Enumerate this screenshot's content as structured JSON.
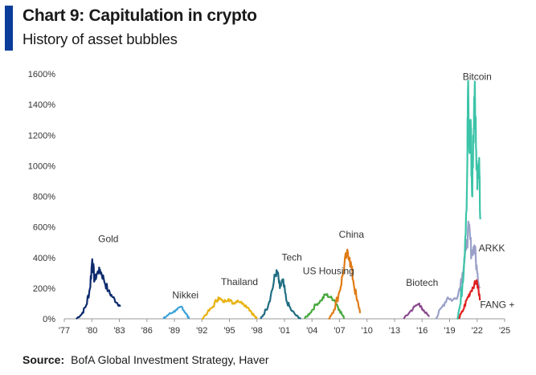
{
  "header": {
    "title": "Chart 9: Capitulation in crypto",
    "subtitle": "History of asset bubbles",
    "accent_color": "#0a3d99"
  },
  "footer": {
    "source_label": "Source:",
    "source_text": "BofA Global Investment Strategy, Haver"
  },
  "chart_data": {
    "type": "line",
    "title": "Chart 9: Capitulation in crypto",
    "subtitle": "History of asset bubbles",
    "xlabel": "",
    "ylabel": "",
    "xlim": [
      1977,
      2025
    ],
    "ylim": [
      0,
      1600
    ],
    "y_ticks": [
      0,
      200,
      400,
      600,
      800,
      1000,
      1200,
      1400,
      1600
    ],
    "y_tick_labels": [
      "0%",
      "200%",
      "400%",
      "600%",
      "800%",
      "1000%",
      "1200%",
      "1400%",
      "1600%"
    ],
    "x_ticks": [
      1977,
      1980,
      1983,
      1986,
      1989,
      1992,
      1995,
      1998,
      2001,
      2004,
      2007,
      2010,
      2013,
      2016,
      2019,
      2022,
      2025
    ],
    "x_tick_labels": [
      "'77",
      "'80",
      "'83",
      "'86",
      "'89",
      "'92",
      "'95",
      "'98",
      "'01",
      "'04",
      "'07",
      "'10",
      "'13",
      "'16",
      "'19",
      "'22",
      "'25"
    ],
    "grid": false,
    "legend": "none (series labelled directly)",
    "series": [
      {
        "name": "Gold",
        "color": "#0d2b6e",
        "x": [
          1978.3,
          1978.9,
          1979.4,
          1979.8,
          1980.05,
          1980.3,
          1980.6,
          1980.9,
          1981.3,
          1981.8,
          1982.3,
          1982.8,
          1983.1
        ],
        "y": [
          0,
          30,
          90,
          200,
          390,
          250,
          300,
          320,
          260,
          180,
          140,
          100,
          80
        ]
      },
      {
        "name": "Nikkei",
        "color": "#3ba3d9",
        "x": [
          1987.8,
          1988.4,
          1988.9,
          1989.3,
          1989.8,
          1990.2,
          1990.6
        ],
        "y": [
          0,
          30,
          45,
          60,
          80,
          40,
          0
        ]
      },
      {
        "name": "Thailand",
        "color": "#e8b20e",
        "x": [
          1992.0,
          1992.6,
          1993.2,
          1993.8,
          1994.3,
          1994.9,
          1995.4,
          1995.9,
          1996.5,
          1997.1,
          1997.7,
          1998.0
        ],
        "y": [
          0,
          40,
          80,
          140,
          110,
          130,
          100,
          120,
          100,
          70,
          20,
          0
        ]
      },
      {
        "name": "Tech",
        "color": "#1f6d82",
        "x": [
          1998.4,
          1999.0,
          1999.5,
          2000.0,
          2000.2,
          2000.5,
          2000.8,
          2001.2,
          2001.7,
          2002.3,
          2002.8
        ],
        "y": [
          0,
          60,
          150,
          280,
          310,
          200,
          250,
          120,
          60,
          20,
          0
        ]
      },
      {
        "name": "US Housing",
        "color": "#47a83e",
        "x": [
          2003.2,
          2003.8,
          2004.4,
          2005.0,
          2005.5,
          2006.0,
          2006.5,
          2007.0,
          2007.5
        ],
        "y": [
          0,
          40,
          90,
          120,
          160,
          140,
          120,
          60,
          0
        ]
      },
      {
        "name": "China",
        "color": "#e07b16",
        "x": [
          2005.8,
          2006.4,
          2007.0,
          2007.4,
          2007.8,
          2008.1,
          2008.5,
          2008.9,
          2009.3
        ],
        "y": [
          0,
          60,
          180,
          300,
          430,
          400,
          250,
          120,
          40
        ]
      },
      {
        "name": "Biotech",
        "color": "#8a4a8e",
        "x": [
          2014.0,
          2014.6,
          2015.2,
          2015.7,
          2016.0,
          2016.4,
          2016.8
        ],
        "y": [
          0,
          40,
          80,
          100,
          60,
          40,
          20
        ]
      },
      {
        "name": "ARKK",
        "color": "#9aa0c8",
        "x": [
          2017.5,
          2018.2,
          2018.8,
          2019.3,
          2019.9,
          2020.4,
          2020.8,
          2021.1,
          2021.4,
          2021.7,
          2022.0,
          2022.3
        ],
        "y": [
          0,
          80,
          140,
          120,
          150,
          300,
          450,
          600,
          420,
          480,
          300,
          200
        ]
      },
      {
        "name": "Bitcoin",
        "color": "#3cc4a8",
        "x": [
          2019.8,
          2020.2,
          2020.6,
          2020.9,
          2021.0,
          2021.15,
          2021.3,
          2021.45,
          2021.6,
          2021.75,
          2021.9,
          2022.05,
          2022.2,
          2022.35
        ],
        "y": [
          0,
          100,
          400,
          900,
          1500,
          1100,
          1300,
          800,
          1200,
          1550,
          1100,
          900,
          1000,
          650
        ]
      },
      {
        "name": "FANG +",
        "color": "#e02020",
        "x": [
          2020.0,
          2020.5,
          2020.9,
          2021.3,
          2021.7,
          2022.0,
          2022.3
        ],
        "y": [
          0,
          60,
          130,
          180,
          230,
          240,
          120
        ]
      }
    ],
    "annotations": [
      {
        "text": "Gold",
        "x": 1981.8,
        "y": 500
      },
      {
        "text": "Nikkei",
        "x": 1990.2,
        "y": 135
      },
      {
        "text": "Thailand",
        "x": 1996.1,
        "y": 220
      },
      {
        "text": "Tech",
        "x": 2001.8,
        "y": 380
      },
      {
        "text": "US Housing",
        "x": 2005.8,
        "y": 290
      },
      {
        "text": "China",
        "x": 2008.3,
        "y": 530
      },
      {
        "text": "Biotech",
        "x": 2016.0,
        "y": 215
      },
      {
        "text": "Bitcoin",
        "x": 2022.0,
        "y": 1560
      },
      {
        "text": "ARKK",
        "x": 2023.6,
        "y": 440
      },
      {
        "text": "FANG +",
        "x": 2024.2,
        "y": 70
      }
    ]
  }
}
